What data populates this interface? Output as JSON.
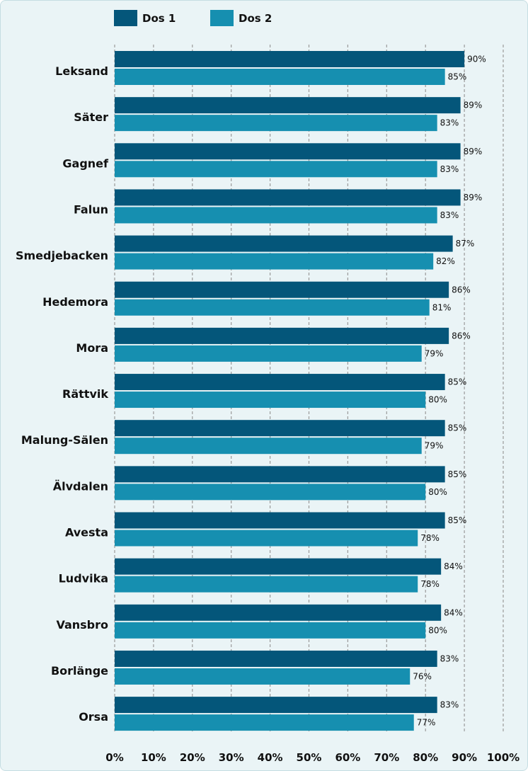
{
  "chart_data": {
    "type": "bar",
    "orientation": "horizontal",
    "title": "",
    "xlabel": "",
    "ylabel": "",
    "xlim": [
      0,
      100
    ],
    "grid": true,
    "legend_position": "top-left",
    "categories": [
      "Leksand",
      "Säter",
      "Gagnef",
      "Falun",
      "Smedjebacken",
      "Hedemora",
      "Mora",
      "Rättvik",
      "Malung-Sälen",
      "Älvdalen",
      "Avesta",
      "Ludvika",
      "Vansbro",
      "Borlänge",
      "Orsa"
    ],
    "series": [
      {
        "name": "Dos 1",
        "color": "#04567a",
        "values": [
          90,
          89,
          89,
          89,
          87,
          86,
          86,
          85,
          85,
          85,
          85,
          84,
          84,
          83,
          83
        ]
      },
      {
        "name": "Dos 2",
        "color": "#168fb0",
        "values": [
          85,
          83,
          83,
          83,
          82,
          81,
          79,
          80,
          79,
          80,
          78,
          78,
          80,
          76,
          77
        ]
      }
    ],
    "ticks": [
      "0%",
      "10%",
      "20%",
      "30%",
      "40%",
      "50%",
      "60%",
      "70%",
      "80%",
      "90%",
      "100%"
    ],
    "value_suffix": "%"
  }
}
